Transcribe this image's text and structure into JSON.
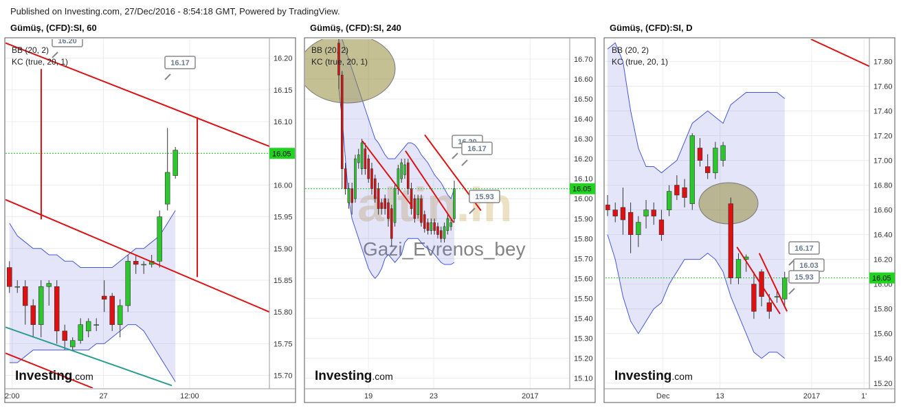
{
  "header": "Published on Investing.com, 27/Dec/2016 - 8:54:18 GMT, Powered by TradingView.",
  "logo": {
    "brand": "Investing",
    "suffix": ".com"
  },
  "chart_data": [
    {
      "type": "candlestick",
      "title": "Gümüş, (CFD):SI, 60",
      "indicators": [
        "BB (20, 2)",
        "KC (true, 20, 1)"
      ],
      "xlim": [
        -0.5,
        32.9
      ],
      "xticks": [
        {
          "value": 0.35,
          "label": "2:00"
        },
        {
          "value": 11.9,
          "label": "27"
        },
        {
          "value": 22.8,
          "label": "12:00"
        }
      ],
      "ylim": [
        15.68,
        16.23
      ],
      "yticks": [
        {
          "value": 15.7,
          "label": "15.70"
        },
        15.75,
        {
          "value": 15.8,
          "label": "15.80"
        },
        15.85,
        {
          "value": 15.9,
          "label": "15.90"
        },
        15.95,
        {
          "value": 16.0,
          "label": "16.00"
        },
        16.05,
        {
          "value": 16.1,
          "label": "16.10"
        },
        16.15,
        {
          "value": 16.2,
          "label": "16.20"
        }
      ],
      "grid": true,
      "up_color": "#2ec62e",
      "down_color": "#dd1111",
      "last": 16.05,
      "ohlc": [
        [
          15.87,
          15.88,
          15.83,
          15.84
        ],
        [
          15.84,
          15.85,
          15.83,
          15.84
        ],
        [
          15.84,
          15.85,
          15.78,
          15.81
        ],
        [
          15.81,
          15.82,
          15.76,
          15.78
        ],
        [
          15.78,
          15.85,
          15.76,
          15.84
        ],
        [
          15.84,
          15.85,
          15.81,
          15.845
        ],
        [
          15.84,
          15.85,
          15.75,
          15.77
        ],
        [
          15.77,
          15.78,
          15.74,
          15.755
        ],
        [
          15.745,
          15.76,
          15.74,
          15.755
        ],
        [
          15.755,
          15.79,
          15.75,
          15.78
        ],
        [
          15.77,
          15.79,
          15.76,
          15.785
        ],
        [
          15.78,
          15.79,
          15.77,
          15.78
        ],
        [
          15.825,
          15.85,
          15.8,
          15.82
        ],
        [
          15.825,
          15.83,
          15.77,
          15.78
        ],
        [
          15.78,
          15.82,
          15.76,
          15.81
        ],
        [
          15.81,
          15.89,
          15.8,
          15.88
        ],
        [
          15.88,
          15.89,
          15.86,
          15.875
        ],
        [
          15.875,
          15.88,
          15.86,
          15.875
        ],
        [
          15.875,
          15.89,
          15.87,
          15.88
        ],
        [
          15.88,
          15.96,
          15.87,
          15.95
        ],
        [
          15.97,
          16.09,
          15.96,
          16.02
        ],
        [
          16.015,
          16.06,
          16.01,
          16.055
        ]
      ],
      "band": {
        "upper": [
          15.94,
          15.92,
          15.91,
          15.9,
          15.9,
          15.89,
          15.89,
          15.88,
          15.88,
          15.87,
          15.87,
          15.87,
          15.87,
          15.87,
          15.88,
          15.89,
          15.9,
          15.9,
          15.91,
          15.92,
          15.94,
          15.96
        ],
        "lower": [
          15.72,
          15.72,
          15.73,
          15.74,
          15.74,
          15.74,
          15.74,
          15.74,
          15.74,
          15.74,
          15.74,
          15.75,
          15.75,
          15.76,
          15.77,
          15.78,
          15.78,
          15.77,
          15.75,
          15.73,
          15.71,
          15.69
        ]
      },
      "trendlines": [
        {
          "x": [
            -0.5,
            32.9
          ],
          "y": [
            16.224,
            16.061
          ],
          "color": "#dd1111"
        },
        {
          "x": [
            -0.5,
            32.9
          ],
          "y": [
            15.977,
            15.8
          ],
          "color": "#dd1111"
        },
        {
          "x": [
            -0.5,
            10.55
          ],
          "y": [
            15.735,
            15.68
          ],
          "color": "#dd1111"
        },
        {
          "x": [
            4.02,
            4.02
          ],
          "y": [
            16.183,
            15.946
          ],
          "color": "#dd1111"
        },
        {
          "x": [
            23.77,
            23.77
          ],
          "y": [
            16.107,
            15.855
          ],
          "color": "#dd1111"
        },
        {
          "x": [
            -0.5,
            20.55
          ],
          "y": [
            15.776,
            15.684
          ],
          "color": "#2a9d8f"
        }
      ],
      "annotations": [
        "16.20",
        "16.17"
      ]
    },
    {
      "type": "candlestick",
      "title": "Gümüş, (CFD):SI, 240",
      "indicators": [
        "BB (20, 2)",
        "KC (true, 20, 1)"
      ],
      "xlim": [
        -10.2,
        70
      ],
      "xticks": [
        {
          "value": 9,
          "label": "19"
        },
        {
          "value": 28.75,
          "label": "23"
        },
        {
          "value": 58,
          "label": "2017"
        }
      ],
      "ylim": [
        15.05,
        16.8
      ],
      "yticks": [
        {
          "value": 15.1,
          "label": "15.10"
        },
        {
          "value": 15.2,
          "label": "15.20"
        },
        {
          "value": 15.3,
          "label": "15.30"
        },
        {
          "value": 15.4,
          "label": "15.40"
        },
        {
          "value": 15.5,
          "label": "15.50"
        },
        {
          "value": 15.6,
          "label": "15.60"
        },
        {
          "value": 15.7,
          "label": "15.70"
        },
        {
          "value": 15.8,
          "label": "15.80"
        },
        {
          "value": 15.9,
          "label": "15.90"
        },
        {
          "value": 16.0,
          "label": "16.00"
        },
        {
          "value": 16.1,
          "label": "16.10"
        },
        {
          "value": 16.2,
          "label": "16.20"
        },
        {
          "value": 16.3,
          "label": "16.30"
        },
        {
          "value": 16.4,
          "label": "16.40"
        },
        {
          "value": 16.5,
          "label": "16.50"
        },
        {
          "value": 16.6,
          "label": "16.60"
        },
        {
          "value": 16.7,
          "label": "16.70"
        }
      ],
      "grid": true,
      "up_color": "#2ec62e",
      "down_color": "#dd1111",
      "last": 16.05,
      "ohlc": [
        [
          16.78,
          16.8,
          16.55,
          16.62
        ],
        [
          16.62,
          16.64,
          16.05,
          16.15
        ],
        [
          16.15,
          16.18,
          16.02,
          16.05
        ],
        [
          15.98,
          16.08,
          15.95,
          16.05
        ],
        [
          16.05,
          16.08,
          15.92,
          15.98
        ],
        [
          16.0,
          16.22,
          15.98,
          16.2
        ],
        [
          16.18,
          16.25,
          16.15,
          16.22
        ],
        [
          16.15,
          16.3,
          16.12,
          16.28
        ],
        [
          16.25,
          16.28,
          16.12,
          16.15
        ],
        [
          16.2,
          16.22,
          16.08,
          16.1
        ],
        [
          16.15,
          16.18,
          16.02,
          16.05
        ],
        [
          16.1,
          16.12,
          15.98,
          16.0
        ],
        [
          16.05,
          16.08,
          15.92,
          15.95
        ],
        [
          15.98,
          16.0,
          15.92,
          15.95
        ],
        [
          16.0,
          16.02,
          15.92,
          15.95
        ],
        [
          15.98,
          16.0,
          15.86,
          15.9
        ],
        [
          15.95,
          15.97,
          15.76,
          15.8
        ],
        [
          15.88,
          16.08,
          15.86,
          16.05
        ],
        [
          16.05,
          16.17,
          16.02,
          16.15
        ],
        [
          16.1,
          16.2,
          16.08,
          16.18
        ],
        [
          16.12,
          16.2,
          16.1,
          16.17
        ],
        [
          16.18,
          16.2,
          16.02,
          16.05
        ],
        [
          16.05,
          16.08,
          15.92,
          15.95
        ],
        [
          16.0,
          16.02,
          15.88,
          15.9
        ],
        [
          15.92,
          16.02,
          15.9,
          16.0
        ],
        [
          16.0,
          16.02,
          15.86,
          15.88
        ],
        [
          15.92,
          15.94,
          15.83,
          15.85
        ],
        [
          15.88,
          15.9,
          15.82,
          15.84
        ],
        [
          15.84,
          15.9,
          15.82,
          15.88
        ],
        [
          15.88,
          15.9,
          15.82,
          15.84
        ],
        [
          15.86,
          15.88,
          15.8,
          15.82
        ],
        [
          15.84,
          15.86,
          15.78,
          15.8
        ],
        [
          15.8,
          15.88,
          15.78,
          15.86
        ],
        [
          15.84,
          15.92,
          15.82,
          15.9
        ],
        [
          15.86,
          15.9,
          15.84,
          15.88
        ],
        [
          15.9,
          16.09,
          15.88,
          16.05
        ]
      ],
      "band": {
        "upper": [
          16.85,
          16.8,
          16.75,
          16.7,
          16.65,
          16.6,
          16.55,
          16.5,
          16.45,
          16.4,
          16.35,
          16.3,
          16.28,
          16.25,
          16.22,
          16.2,
          16.2,
          16.2,
          16.22,
          16.24,
          16.26,
          16.28,
          16.28,
          16.27,
          16.25,
          16.22,
          16.2,
          16.18,
          16.15,
          16.12,
          16.1,
          16.08,
          16.05,
          16.02,
          16.0,
          16.05
        ],
        "lower": [
          16.55,
          16.4,
          16.2,
          16.0,
          15.9,
          15.85,
          15.8,
          15.75,
          15.7,
          15.65,
          15.62,
          15.6,
          15.62,
          15.65,
          15.7,
          15.72,
          15.7,
          15.68,
          15.7,
          15.72,
          15.78,
          15.8,
          15.8,
          15.8,
          15.8,
          15.78,
          15.76,
          15.75,
          15.74,
          15.72,
          15.7,
          15.68,
          15.67,
          15.67,
          15.67,
          15.68
        ]
      },
      "trendlines": [
        {
          "x": [
            7.09,
            22.3
          ],
          "y": [
            16.29,
            15.96
          ],
          "color": "#dd1111"
        },
        {
          "x": [
            20.2,
            34.8
          ],
          "y": [
            16.24,
            15.88
          ],
          "color": "#dd1111"
        },
        {
          "x": [
            26.05,
            43.1
          ],
          "y": [
            16.32,
            15.94
          ],
          "color": "#dd1111"
        }
      ],
      "annotations": [
        "16.20",
        "16.17",
        "15.93"
      ],
      "watermarks": [
        "altin.in",
        "Gazi_Evrenos_bey"
      ]
    },
    {
      "type": "candlestick",
      "title": "Gümüş, (CFD):SI, D",
      "indicators": [
        "BB (20, 2)",
        "KC (true, 20, 1)"
      ],
      "xlim": [
        -0.27,
        34
      ],
      "xticks": [
        {
          "value": 7.2,
          "label": "Dec"
        },
        {
          "value": 14.6,
          "label": "13"
        },
        {
          "value": 26.5,
          "label": "2017"
        },
        {
          "value": 33.3,
          "label": "1'"
        }
      ],
      "ylim": [
        15.16,
        17.98
      ],
      "yticks": [
        {
          "value": 15.2,
          "label": "15.20"
        },
        {
          "value": 15.4,
          "label": "15.40"
        },
        {
          "value": 15.6,
          "label": "15.60"
        },
        {
          "value": 15.8,
          "label": "15.80"
        },
        {
          "value": 16.0,
          "label": "16.00"
        },
        {
          "value": 16.2,
          "label": "16.20"
        },
        {
          "value": 16.4,
          "label": "16.40"
        },
        {
          "value": 16.6,
          "label": "16.60"
        },
        {
          "value": 16.8,
          "label": "16.80"
        },
        {
          "value": 17.0,
          "label": "17.00"
        },
        {
          "value": 17.2,
          "label": "17.20"
        },
        {
          "value": 17.4,
          "label": "17.40"
        },
        {
          "value": 17.6,
          "label": "17.60"
        },
        {
          "value": 17.8,
          "label": "17.80"
        }
      ],
      "grid": true,
      "up_color": "#2ec62e",
      "down_color": "#dd1111",
      "last": 16.05,
      "ohlc": [
        [
          16.64,
          16.72,
          16.55,
          16.6
        ],
        [
          16.6,
          16.66,
          16.5,
          16.55
        ],
        [
          16.62,
          16.78,
          16.4,
          16.52
        ],
        [
          16.58,
          16.66,
          16.25,
          16.4
        ],
        [
          16.4,
          16.55,
          16.3,
          16.5
        ],
        [
          16.55,
          16.68,
          16.45,
          16.6
        ],
        [
          16.6,
          16.66,
          16.48,
          16.55
        ],
        [
          16.52,
          16.6,
          16.35,
          16.4
        ],
        [
          16.6,
          16.8,
          16.55,
          16.75
        ],
        [
          16.8,
          16.88,
          16.68,
          16.72
        ],
        [
          16.78,
          16.85,
          16.62,
          16.7
        ],
        [
          16.65,
          17.22,
          16.6,
          17.2
        ],
        [
          17.1,
          17.18,
          16.95,
          17.0
        ],
        [
          16.95,
          17.05,
          16.85,
          16.9
        ],
        [
          16.9,
          17.15,
          16.85,
          17.1
        ],
        [
          17.0,
          17.15,
          16.95,
          17.12
        ],
        [
          16.65,
          16.7,
          16.0,
          16.05
        ],
        [
          16.05,
          16.25,
          16.0,
          16.2
        ],
        [
          16.2,
          16.24,
          16.1,
          16.22
        ],
        [
          16.0,
          16.1,
          15.72,
          15.78
        ],
        [
          16.1,
          16.12,
          15.82,
          15.9
        ],
        [
          15.85,
          15.92,
          15.72,
          15.78
        ],
        [
          15.9,
          15.95,
          15.85,
          15.9
        ],
        [
          15.88,
          16.1,
          15.82,
          16.05
        ]
      ],
      "band": {
        "upper": [
          17.9,
          17.95,
          17.8,
          17.4,
          17.1,
          16.95,
          16.95,
          16.9,
          16.95,
          17.0,
          17.15,
          17.3,
          17.35,
          17.4,
          17.35,
          17.3,
          17.45,
          17.5,
          17.55,
          17.55,
          17.55,
          17.55,
          17.55,
          17.5
        ],
        "lower": [
          16.4,
          16.2,
          15.9,
          15.7,
          15.6,
          15.7,
          15.8,
          15.85,
          16.0,
          16.1,
          16.2,
          16.2,
          16.2,
          16.25,
          16.2,
          16.1,
          15.9,
          15.75,
          15.6,
          15.45,
          15.4,
          15.45,
          15.45,
          15.4
        ]
      },
      "trendlines": [
        {
          "x": [
            26.4,
            34.0
          ],
          "y": [
            17.98,
            17.76
          ],
          "color": "#dd1111"
        },
        {
          "x": [
            16.8,
            22.4
          ],
          "y": [
            16.3,
            15.76
          ],
          "color": "#dd1111"
        },
        {
          "x": [
            19.7,
            23.3
          ],
          "y": [
            16.25,
            15.78
          ],
          "color": "#dd1111"
        }
      ],
      "annotations": [
        "16.17",
        "16.03",
        "15.93"
      ]
    }
  ]
}
